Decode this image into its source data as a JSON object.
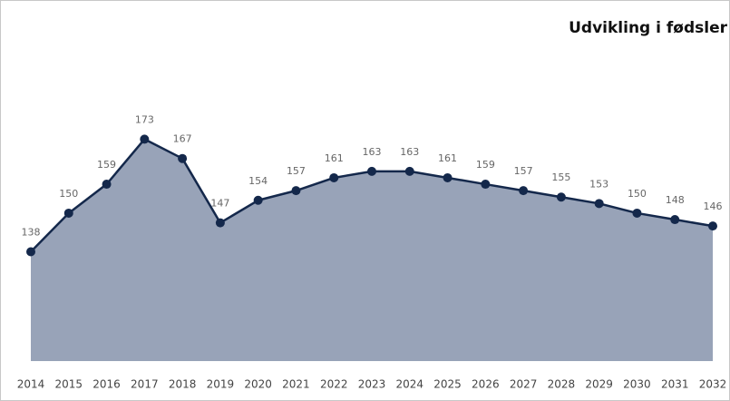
{
  "chart_data": {
    "type": "area",
    "title": "Udvikling i fødsler",
    "categories": [
      "2014",
      "2015",
      "2016",
      "2017",
      "2018",
      "2019",
      "2020",
      "2021",
      "2022",
      "2023",
      "2024",
      "2025",
      "2026",
      "2027",
      "2028",
      "2029",
      "2030",
      "2031",
      "2032"
    ],
    "values": [
      138,
      150,
      159,
      173,
      167,
      147,
      154,
      157,
      161,
      163,
      163,
      161,
      159,
      157,
      155,
      153,
      150,
      148,
      146
    ],
    "color": "#14284b",
    "fill": "#98a3b8",
    "ylim": [
      104,
      205
    ]
  }
}
